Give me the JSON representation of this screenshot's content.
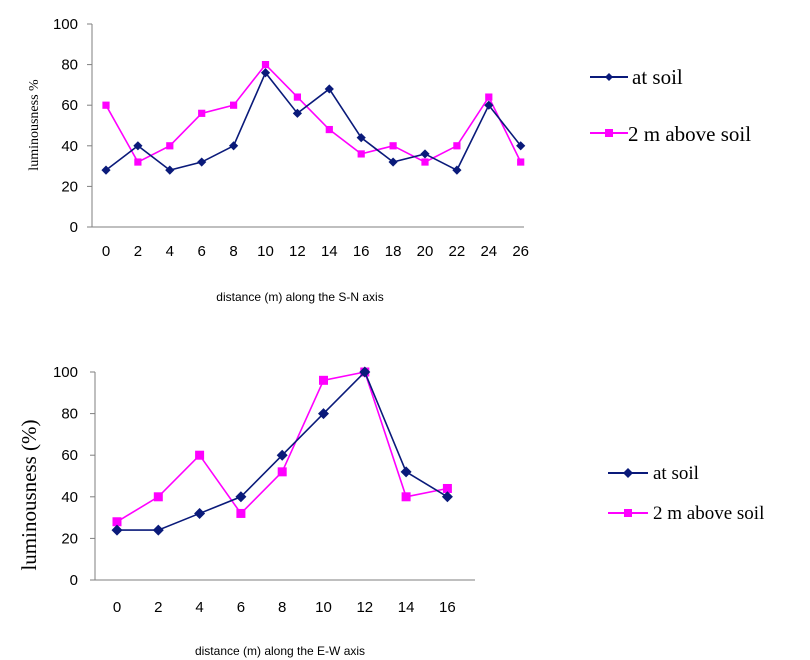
{
  "chart_data": [
    {
      "type": "line",
      "x": [
        0,
        2,
        4,
        6,
        8,
        10,
        12,
        14,
        16,
        18,
        20,
        22,
        24,
        26
      ],
      "series": [
        {
          "name": "at soil",
          "color": "#0a1a7a",
          "marker": "diamond",
          "values": [
            28,
            40,
            28,
            32,
            40,
            76,
            56,
            68,
            44,
            32,
            36,
            28,
            60,
            40
          ]
        },
        {
          "name": "2 m above soil",
          "color": "#ff00ff",
          "marker": "square",
          "values": [
            60,
            32,
            40,
            56,
            60,
            80,
            64,
            48,
            36,
            40,
            32,
            40,
            64,
            32
          ]
        }
      ],
      "xlabel": "distance (m) along the S-N axis",
      "ylabel": "luminousness  %",
      "ylim": [
        0,
        100
      ],
      "yticks": [
        0,
        20,
        40,
        60,
        80,
        100
      ],
      "grid": false,
      "legend": "right"
    },
    {
      "type": "line",
      "x": [
        0,
        2,
        4,
        6,
        8,
        10,
        12,
        14,
        16
      ],
      "series": [
        {
          "name": "at soil",
          "color": "#0a1a7a",
          "marker": "diamond",
          "values": [
            24,
            24,
            32,
            40,
            60,
            80,
            100,
            52,
            40
          ]
        },
        {
          "name": "2 m above soil",
          "color": "#ff00ff",
          "marker": "square",
          "values": [
            28,
            40,
            60,
            32,
            52,
            96,
            100,
            40,
            44
          ]
        }
      ],
      "xlabel": "distance (m) along the E-W axis",
      "ylabel": "luminousness (%)",
      "ylim": [
        0,
        100
      ],
      "yticks": [
        0,
        20,
        40,
        60,
        80,
        100
      ],
      "grid": false,
      "legend": "right"
    }
  ]
}
